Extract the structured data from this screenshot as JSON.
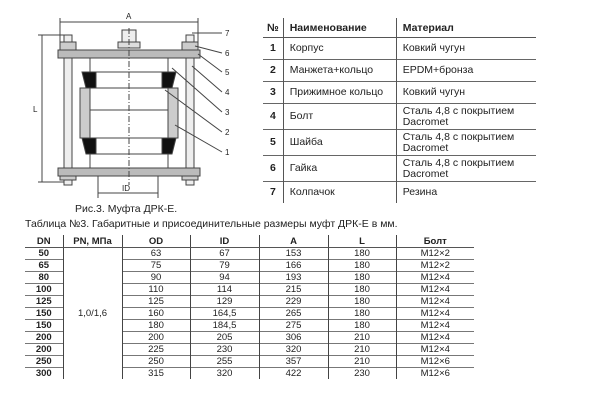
{
  "figure": {
    "labels": {
      "A": "A",
      "L": "L",
      "ID": "ID"
    },
    "callouts": [
      "7",
      "6",
      "5",
      "4",
      "3",
      "2",
      "1"
    ],
    "caption": "Рис.3. Муфта ДРК-Е."
  },
  "parts_table": {
    "headers": [
      "№",
      "Наименование",
      "Материал"
    ],
    "rows": [
      {
        "no": "1",
        "name": "Корпус",
        "material": "Ковкий чугун"
      },
      {
        "no": "2",
        "name": "Манжета+кольцо",
        "material": "EPDM+бронза"
      },
      {
        "no": "3",
        "name": "Прижимное кольцо",
        "material": "Ковкий чугун"
      },
      {
        "no": "4",
        "name": "Болт",
        "material": "Сталь 4,8 с покрытием Dacromet"
      },
      {
        "no": "5",
        "name": "Шайба",
        "material": "Сталь 4,8 с покрытием Dacromet"
      },
      {
        "no": "6",
        "name": "Гайка",
        "material": "Сталь 4,8 с покрытием Dacromet"
      },
      {
        "no": "7",
        "name": "Колпачок",
        "material": "Резина"
      }
    ]
  },
  "dims_table": {
    "caption": "Таблица №3. Габаритные и присоединительные размеры муфт ДРК-Е в мм.",
    "headers": [
      "DN",
      "PN, МПа",
      "OD",
      "ID",
      "A",
      "L",
      "Болт"
    ],
    "pn": "1,0/1,6",
    "rows": [
      [
        "50",
        "63",
        "67",
        "153",
        "180",
        "M12×2"
      ],
      [
        "65",
        "75",
        "79",
        "166",
        "180",
        "M12×2"
      ],
      [
        "80",
        "90",
        "94",
        "193",
        "180",
        "M12×4"
      ],
      [
        "100",
        "110",
        "114",
        "215",
        "180",
        "M12×4"
      ],
      [
        "125",
        "125",
        "129",
        "229",
        "180",
        "M12×4"
      ],
      [
        "150",
        "160",
        "164,5",
        "265",
        "180",
        "M12×4"
      ],
      [
        "150",
        "180",
        "184,5",
        "275",
        "180",
        "M12×4"
      ],
      [
        "200",
        "200",
        "205",
        "306",
        "210",
        "M12×4"
      ],
      [
        "200",
        "225",
        "230",
        "320",
        "210",
        "M12×4"
      ],
      [
        "250",
        "250",
        "255",
        "357",
        "210",
        "M12×6"
      ],
      [
        "300",
        "315",
        "320",
        "422",
        "230",
        "M12×6"
      ]
    ]
  }
}
